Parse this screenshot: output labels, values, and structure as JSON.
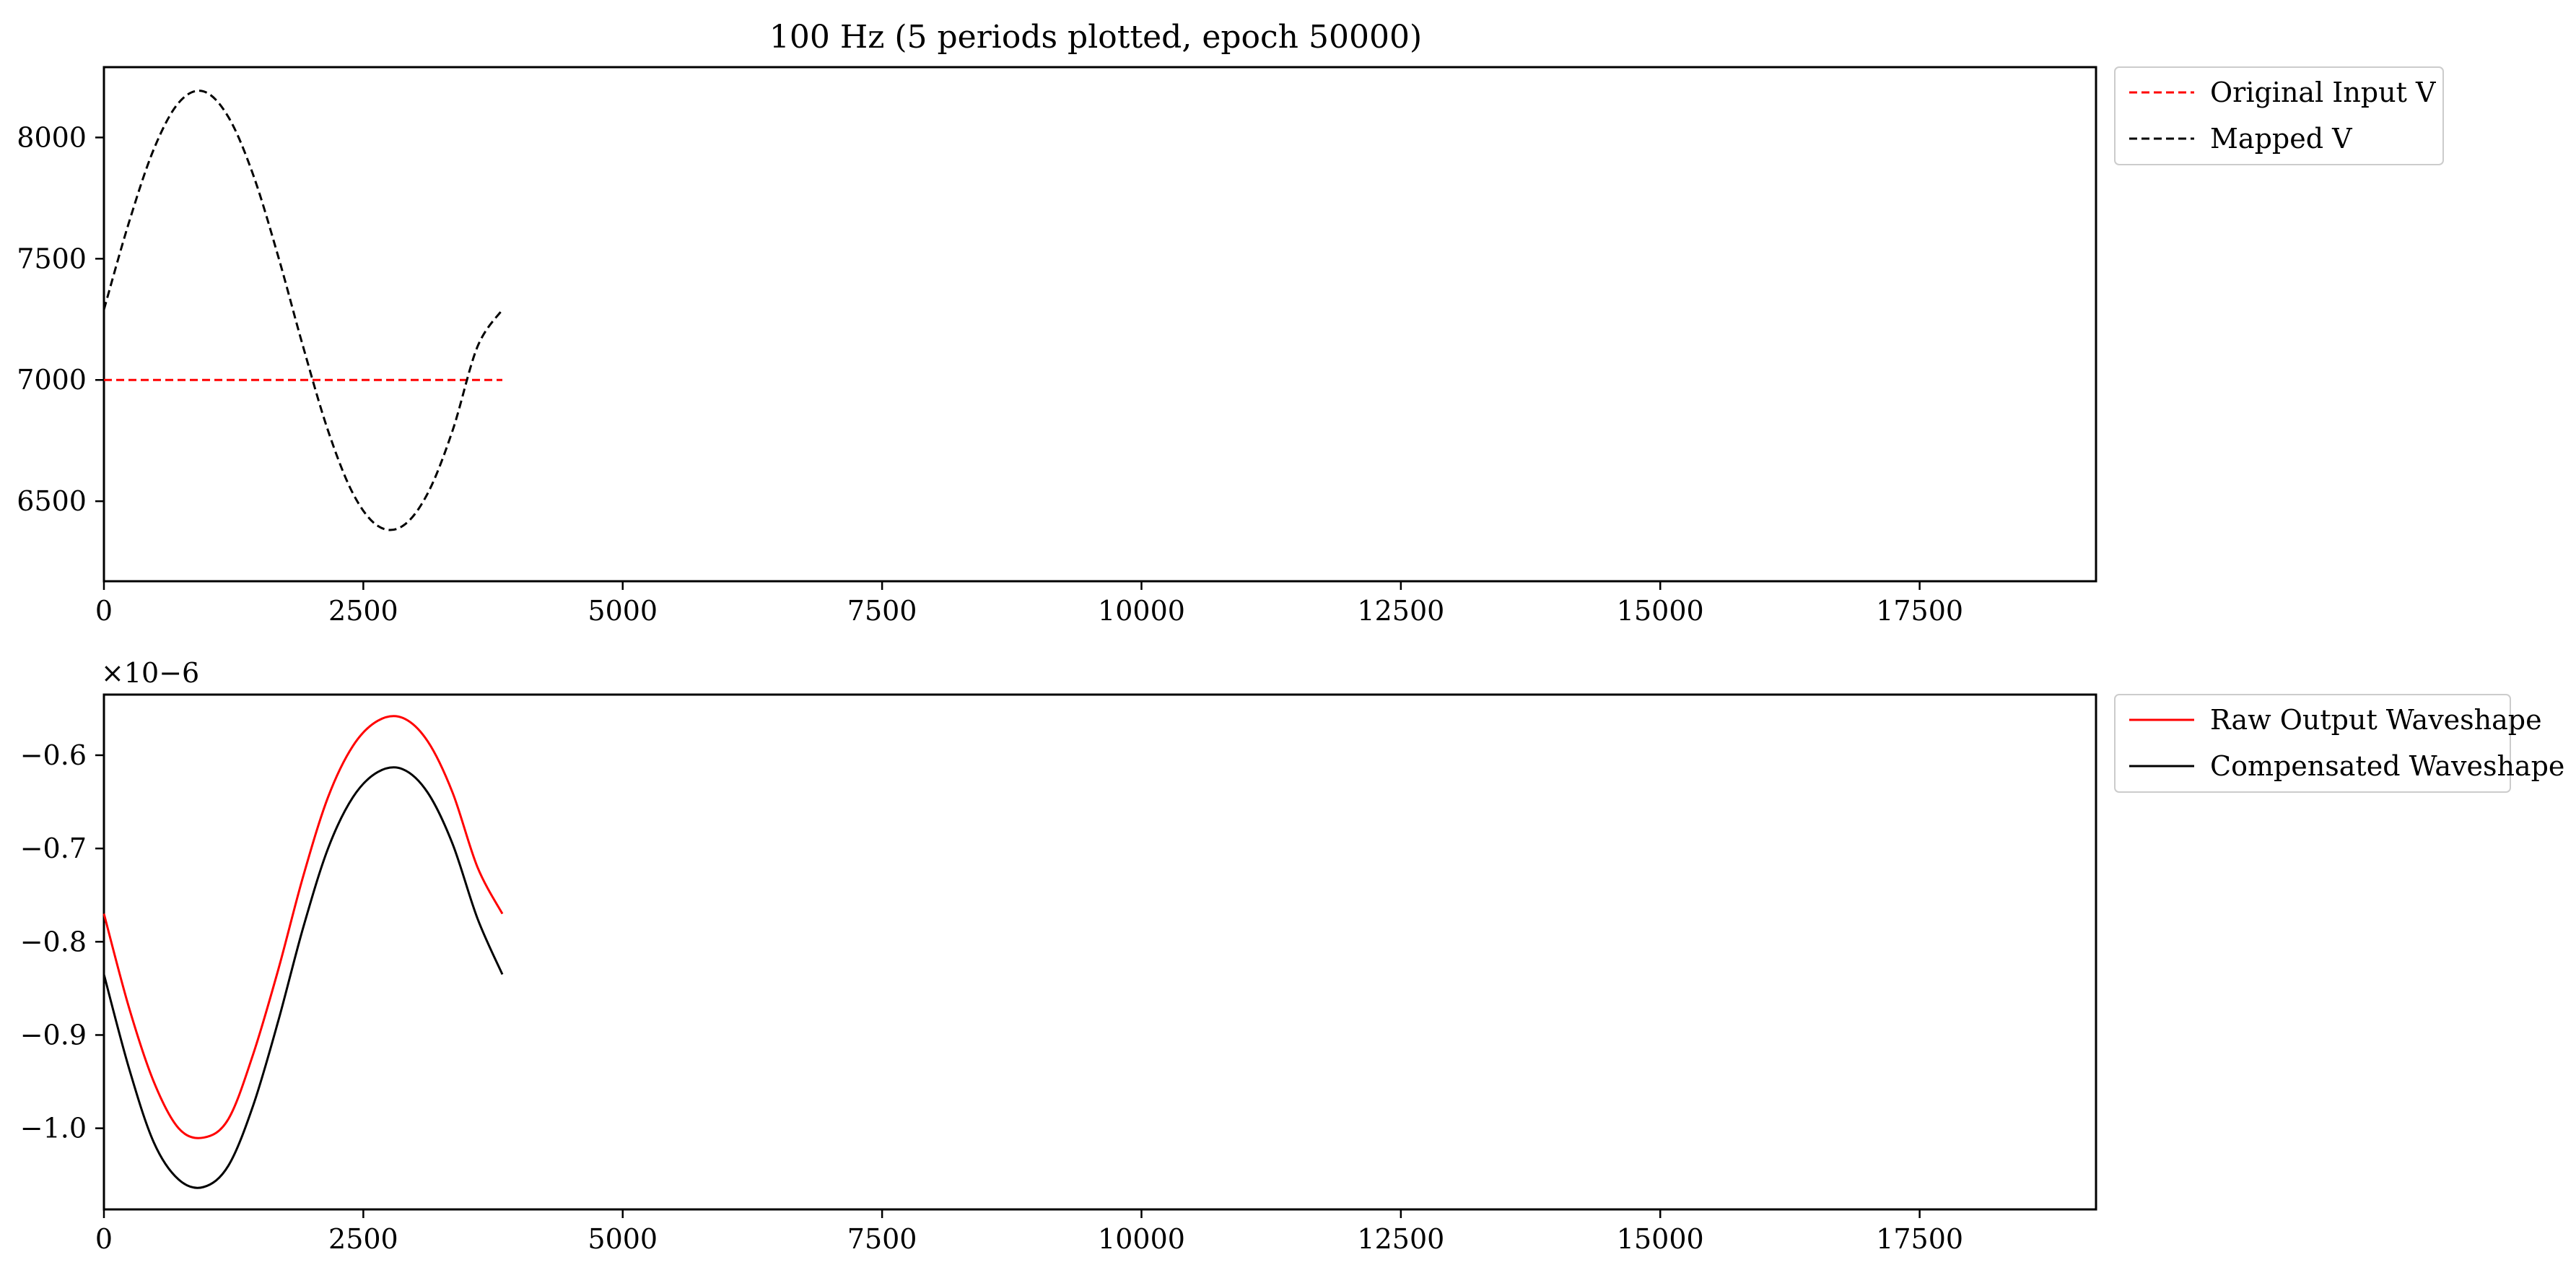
{
  "chart_data": [
    {
      "type": "line",
      "title": "100 Hz (5 periods plotted, epoch 50000)",
      "xlabel": "",
      "ylabel": "",
      "xlim": [
        0,
        19200
      ],
      "ylim": [
        6170,
        8290
      ],
      "xticks": [
        0,
        2500,
        5000,
        7500,
        10000,
        12500,
        15000,
        17500
      ],
      "xtick_labels": [
        "0",
        "2500",
        "5000",
        "7500",
        "10000",
        "12500",
        "15000",
        "17500"
      ],
      "yticks": [
        6500,
        7000,
        7500,
        8000
      ],
      "ytick_labels": [
        "6500",
        "7000",
        "7500",
        "8000"
      ],
      "grid": false,
      "legend_position": "outside-upper-right",
      "series": [
        {
          "name": "Original Input V",
          "color": "#ff0000",
          "linestyle": "dashed",
          "x": [
            0,
            3840
          ],
          "y": [
            7000,
            7000
          ]
        },
        {
          "name": "Mapped V",
          "color": "#000000",
          "linestyle": "dashed",
          "x": [
            0,
            240,
            480,
            720,
            960,
            1200,
            1440,
            1680,
            1920,
            2160,
            2400,
            2640,
            2880,
            3120,
            3360,
            3600,
            3840
          ],
          "y": [
            7290,
            7648,
            7951,
            8143,
            8190,
            8084,
            7844,
            7509,
            7137,
            6791,
            6532,
            6398,
            6398,
            6532,
            6791,
            7137,
            7290
          ]
        }
      ]
    },
    {
      "type": "line",
      "title": "",
      "xlabel": "",
      "ylabel": "",
      "y_scale_note": "×10−6",
      "xlim": [
        0,
        19200
      ],
      "ylim": [
        -1.087,
        -0.535
      ],
      "xticks": [
        0,
        2500,
        5000,
        7500,
        10000,
        12500,
        15000,
        17500
      ],
      "xtick_labels": [
        "0",
        "2500",
        "5000",
        "7500",
        "10000",
        "12500",
        "15000",
        "17500"
      ],
      "yticks": [
        -1.0,
        -0.9,
        -0.8,
        -0.7,
        -0.6
      ],
      "ytick_labels": [
        "−1.0",
        "−0.9",
        "−0.8",
        "−0.7",
        "−0.6"
      ],
      "grid": false,
      "legend_position": "outside-upper-right",
      "series": [
        {
          "name": "Raw Output Waveshape",
          "color": "#ff0000",
          "linestyle": "solid",
          "x": [
            0,
            240,
            480,
            720,
            960,
            1200,
            1440,
            1680,
            1920,
            2160,
            2400,
            2640,
            2880,
            3120,
            3360,
            3600,
            3840
          ],
          "y": [
            -0.77,
            -0.87,
            -0.95,
            -1.0,
            -1.01,
            -0.99,
            -0.92,
            -0.83,
            -0.73,
            -0.645,
            -0.59,
            -0.563,
            -0.56,
            -0.585,
            -0.64,
            -0.72,
            -0.77
          ]
        },
        {
          "name": "Compensated Waveshape",
          "color": "#000000",
          "linestyle": "solid",
          "x": [
            0,
            240,
            480,
            720,
            960,
            1200,
            1440,
            1680,
            1920,
            2160,
            2400,
            2640,
            2880,
            3120,
            3360,
            3600,
            3840
          ],
          "y": [
            -0.835,
            -0.935,
            -1.015,
            -1.055,
            -1.063,
            -1.04,
            -0.975,
            -0.885,
            -0.785,
            -0.7,
            -0.645,
            -0.618,
            -0.615,
            -0.64,
            -0.695,
            -0.775,
            -0.835
          ]
        }
      ]
    }
  ]
}
